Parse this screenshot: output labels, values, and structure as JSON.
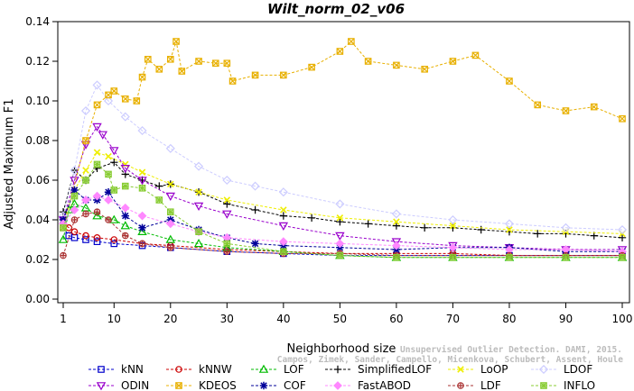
{
  "chart_data": {
    "type": "line",
    "title": "Wilt_norm_02_v06",
    "xlabel": "Neighborhood size",
    "ylabel": "Adjusted Maximum F1",
    "xlim": [
      1,
      100
    ],
    "ylim": [
      0.0,
      0.14
    ],
    "x_ticks": [
      1,
      10,
      20,
      30,
      40,
      50,
      60,
      70,
      80,
      90,
      100
    ],
    "y_ticks": [
      "0.00",
      "0.02",
      "0.04",
      "0.06",
      "0.08",
      "0.10",
      "0.12",
      "0.14"
    ],
    "grid": false,
    "legend_position": "bottom",
    "watermark": [
      "Unsupervised Outlier Detection. DAMI, 2015.",
      "Campos, Zimek, Sander, Campello, Micenkova, Schubert, Assent, Houle"
    ],
    "series": [
      {
        "name": "kNN",
        "color": "#0000cc",
        "marker": "square-open",
        "x": [
          1,
          2,
          3,
          5,
          7,
          10,
          15,
          20,
          30,
          40,
          50,
          60,
          70,
          80,
          90,
          100
        ],
        "y": [
          0.036,
          0.032,
          0.031,
          0.03,
          0.029,
          0.028,
          0.027,
          0.026,
          0.024,
          0.023,
          0.022,
          0.022,
          0.022,
          0.022,
          0.022,
          0.022
        ]
      },
      {
        "name": "kNNW",
        "color": "#cc0000",
        "marker": "circle-open",
        "x": [
          1,
          2,
          3,
          5,
          7,
          10,
          15,
          20,
          30,
          40,
          50,
          60,
          70,
          80,
          90,
          100
        ],
        "y": [
          0.038,
          0.036,
          0.034,
          0.032,
          0.031,
          0.03,
          0.028,
          0.027,
          0.025,
          0.024,
          0.023,
          0.023,
          0.023,
          0.022,
          0.022,
          0.022
        ]
      },
      {
        "name": "LOF",
        "color": "#00bb00",
        "marker": "triangle-up-open",
        "x": [
          1,
          2,
          3,
          5,
          7,
          10,
          12,
          15,
          20,
          25,
          30,
          40,
          50,
          60,
          70,
          80,
          90,
          100
        ],
        "y": [
          0.03,
          0.045,
          0.048,
          0.046,
          0.042,
          0.04,
          0.037,
          0.034,
          0.03,
          0.028,
          0.026,
          0.024,
          0.022,
          0.021,
          0.021,
          0.021,
          0.021,
          0.021
        ]
      },
      {
        "name": "SimplifiedLOF",
        "color": "#000000",
        "marker": "plus",
        "x": [
          1,
          3,
          5,
          7,
          10,
          12,
          15,
          18,
          20,
          25,
          30,
          35,
          40,
          45,
          50,
          55,
          60,
          65,
          70,
          75,
          80,
          85,
          90,
          95,
          100
        ],
        "y": [
          0.044,
          0.065,
          0.06,
          0.066,
          0.069,
          0.063,
          0.06,
          0.057,
          0.058,
          0.054,
          0.048,
          0.045,
          0.042,
          0.041,
          0.039,
          0.038,
          0.037,
          0.036,
          0.036,
          0.035,
          0.034,
          0.033,
          0.033,
          0.032,
          0.031
        ]
      },
      {
        "name": "LoOP",
        "color": "#eeee00",
        "marker": "x",
        "x": [
          1,
          3,
          5,
          7,
          9,
          12,
          15,
          20,
          25,
          30,
          40,
          50,
          60,
          70,
          80,
          90,
          100
        ],
        "y": [
          0.04,
          0.055,
          0.065,
          0.074,
          0.072,
          0.068,
          0.064,
          0.058,
          0.054,
          0.05,
          0.045,
          0.041,
          0.039,
          0.037,
          0.035,
          0.034,
          0.033
        ]
      },
      {
        "name": "LDOF",
        "color": "#ccccff",
        "marker": "diamond-open",
        "x": [
          1,
          3,
          5,
          7,
          9,
          12,
          15,
          20,
          25,
          30,
          35,
          40,
          50,
          60,
          70,
          80,
          90,
          100
        ],
        "y": [
          0.042,
          0.065,
          0.095,
          0.108,
          0.1,
          0.092,
          0.085,
          0.076,
          0.067,
          0.06,
          0.057,
          0.054,
          0.048,
          0.043,
          0.04,
          0.038,
          0.036,
          0.035
        ]
      },
      {
        "name": "ODIN",
        "color": "#9900cc",
        "marker": "triangle-down-open",
        "x": [
          1,
          3,
          5,
          7,
          8,
          10,
          12,
          15,
          20,
          25,
          30,
          40,
          50,
          60,
          70,
          80,
          90,
          100
        ],
        "y": [
          0.04,
          0.06,
          0.078,
          0.087,
          0.083,
          0.075,
          0.066,
          0.06,
          0.052,
          0.047,
          0.043,
          0.037,
          0.032,
          0.029,
          0.027,
          0.026,
          0.025,
          0.025
        ]
      },
      {
        "name": "KDEOS",
        "color": "#e8b000",
        "marker": "square-x",
        "x": [
          1,
          5,
          7,
          9,
          10,
          12,
          14,
          15,
          16,
          18,
          20,
          21,
          22,
          25,
          28,
          30,
          31,
          35,
          40,
          45,
          50,
          52,
          55,
          60,
          65,
          70,
          74,
          80,
          85,
          90,
          95,
          100
        ],
        "y": [
          0.036,
          0.08,
          0.098,
          0.103,
          0.105,
          0.101,
          0.1,
          0.112,
          0.121,
          0.116,
          0.121,
          0.13,
          0.115,
          0.12,
          0.119,
          0.119,
          0.11,
          0.113,
          0.113,
          0.117,
          0.125,
          0.13,
          0.12,
          0.118,
          0.116,
          0.12,
          0.123,
          0.11,
          0.098,
          0.095,
          0.097,
          0.091
        ]
      },
      {
        "name": "COF",
        "color": "#000099",
        "marker": "asterisk",
        "x": [
          1,
          3,
          5,
          7,
          9,
          12,
          15,
          20,
          25,
          30,
          35,
          40,
          50,
          60,
          70,
          80,
          90,
          100
        ],
        "y": [
          0.04,
          0.055,
          0.05,
          0.05,
          0.054,
          0.042,
          0.036,
          0.04,
          0.035,
          0.031,
          0.028,
          0.027,
          0.026,
          0.025,
          0.026,
          0.026,
          0.024,
          0.024
        ]
      },
      {
        "name": "FastABOD",
        "color": "#ff88ff",
        "marker": "diamond-filled",
        "x": [
          1,
          3,
          5,
          7,
          9,
          12,
          15,
          20,
          25,
          30,
          40,
          50,
          60,
          70,
          80,
          90,
          100
        ],
        "y": [
          0.038,
          0.045,
          0.05,
          0.052,
          0.05,
          0.046,
          0.042,
          0.038,
          0.034,
          0.031,
          0.029,
          0.028,
          0.027,
          0.026,
          0.025,
          0.025,
          0.024
        ]
      },
      {
        "name": "LDF",
        "color": "#aa3333",
        "marker": "circle-plus",
        "x": [
          1,
          3,
          5,
          7,
          9,
          12,
          15,
          20,
          30,
          40,
          50,
          60,
          70,
          80,
          90,
          100
        ],
        "y": [
          0.022,
          0.04,
          0.043,
          0.044,
          0.04,
          0.032,
          0.028,
          0.026,
          0.024,
          0.023,
          0.023,
          0.022,
          0.022,
          0.022,
          0.022,
          0.022
        ]
      },
      {
        "name": "INFLO",
        "color": "#88cc33",
        "marker": "square-star",
        "x": [
          1,
          3,
          5,
          7,
          9,
          10,
          12,
          15,
          18,
          20,
          25,
          30,
          40,
          50,
          60,
          70,
          80,
          90,
          100
        ],
        "y": [
          0.036,
          0.052,
          0.06,
          0.068,
          0.063,
          0.055,
          0.057,
          0.056,
          0.05,
          0.044,
          0.034,
          0.028,
          0.024,
          0.022,
          0.021,
          0.021,
          0.021,
          0.021,
          0.021
        ]
      }
    ]
  }
}
